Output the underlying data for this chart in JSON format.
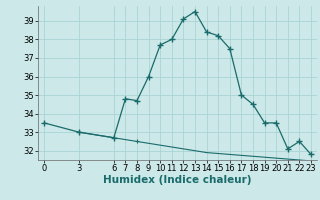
{
  "xlabel": "Humidex (Indice chaleur)",
  "bg_color": "#cce8e8",
  "line_color": "#1a6b6b",
  "marker": "+",
  "humidex_x": [
    0,
    3,
    6,
    7,
    8,
    9,
    10,
    11,
    12,
    13,
    14,
    15,
    16,
    17,
    18,
    19,
    20,
    21,
    22,
    23
  ],
  "humidex_y": [
    33.5,
    33.0,
    32.7,
    34.8,
    34.7,
    36.0,
    37.7,
    38.0,
    39.1,
    39.5,
    38.4,
    38.2,
    37.5,
    35.0,
    34.5,
    33.5,
    33.5,
    32.1,
    32.5,
    31.8
  ],
  "base_x": [
    3,
    6,
    7,
    8,
    9,
    10,
    11,
    12,
    13,
    14,
    15,
    16,
    17,
    18,
    19,
    20,
    21,
    22,
    23
  ],
  "base_y": [
    33.0,
    32.7,
    32.6,
    32.5,
    32.4,
    32.3,
    32.2,
    32.1,
    32.0,
    31.9,
    31.85,
    31.8,
    31.75,
    31.7,
    31.65,
    31.6,
    31.55,
    31.5,
    31.45
  ],
  "ylim": [
    31.5,
    39.8
  ],
  "xlim": [
    -0.5,
    23.5
  ],
  "yticks": [
    32,
    33,
    34,
    35,
    36,
    37,
    38,
    39
  ],
  "xticks": [
    0,
    3,
    6,
    7,
    8,
    9,
    10,
    11,
    12,
    13,
    14,
    15,
    16,
    17,
    18,
    19,
    20,
    21,
    22,
    23
  ],
  "grid_color": "#aad4d4",
  "tick_fontsize": 6.0,
  "label_fontsize": 7.5
}
